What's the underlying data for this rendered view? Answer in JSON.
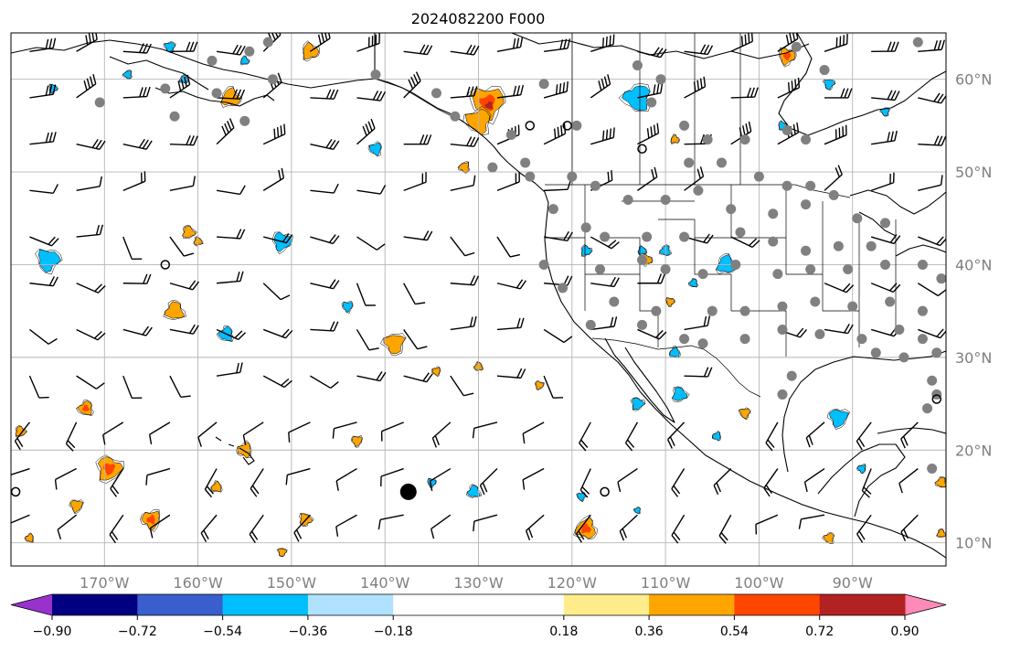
{
  "title": "2024082200 F000",
  "chart_data": {
    "type": "map",
    "projection": "plate-carree",
    "lon_range": [
      -180,
      -80
    ],
    "lat_range": [
      7.5,
      65
    ],
    "lon_ticks": [
      {
        "value": -170,
        "label": "170°W"
      },
      {
        "value": -160,
        "label": "160°W"
      },
      {
        "value": -150,
        "label": "150°W"
      },
      {
        "value": -140,
        "label": "140°W"
      },
      {
        "value": -130,
        "label": "130°W"
      },
      {
        "value": -120,
        "label": "120°W"
      },
      {
        "value": -110,
        "label": "110°W"
      },
      {
        "value": -100,
        "label": "100°W"
      },
      {
        "value": -90,
        "label": "90°W"
      }
    ],
    "lat_ticks": [
      {
        "value": 60,
        "label": "60°N"
      },
      {
        "value": 50,
        "label": "50°N"
      },
      {
        "value": 40,
        "label": "40°N"
      },
      {
        "value": 30,
        "label": "30°N"
      },
      {
        "value": 20,
        "label": "20°N"
      },
      {
        "value": 10,
        "label": "10°N"
      }
    ],
    "grid": true,
    "colorbar": {
      "orientation": "horizontal",
      "extend": "both",
      "levels": [
        -1.08,
        -0.9,
        -0.72,
        -0.54,
        -0.36,
        -0.18,
        0.18,
        0.36,
        0.54,
        0.72,
        0.9,
        1.08
      ],
      "colors": [
        "#9932cc",
        "#000080",
        "#3a5fcd",
        "#00bfff",
        "#b0e2ff",
        "#ffffff",
        "#ffec8b",
        "#ffa500",
        "#ff4500",
        "#b22222",
        "#ff8ab8"
      ],
      "ticks": [
        {
          "value": -0.9,
          "label": "−0.90"
        },
        {
          "value": -0.72,
          "label": "−0.72"
        },
        {
          "value": -0.54,
          "label": "−0.54"
        },
        {
          "value": -0.36,
          "label": "−0.36"
        },
        {
          "value": -0.18,
          "label": "−0.18"
        },
        {
          "value": 0.18,
          "label": "0.18"
        },
        {
          "value": 0.36,
          "label": "0.36"
        },
        {
          "value": 0.54,
          "label": "0.54"
        },
        {
          "value": 0.72,
          "label": "0.72"
        },
        {
          "value": 0.9,
          "label": "0.90"
        }
      ]
    },
    "positive_regions": [
      {
        "lon": -156.5,
        "lat": 58,
        "r": 0.9,
        "level": 0.36
      },
      {
        "lon": -148,
        "lat": 63,
        "r": 0.8,
        "level": 0.36
      },
      {
        "lon": -97,
        "lat": 62.5,
        "r": 0.8,
        "level": 0.54
      },
      {
        "lon": -129,
        "lat": 57.5,
        "r": 1.6,
        "level": 0.54
      },
      {
        "lon": -130,
        "lat": 55.5,
        "r": 1.2,
        "level": 0.36
      },
      {
        "lon": -172,
        "lat": 24.5,
        "r": 0.7,
        "level": 0.54
      },
      {
        "lon": -162.5,
        "lat": 35,
        "r": 0.9,
        "level": 0.36
      },
      {
        "lon": -161,
        "lat": 43.5,
        "r": 0.6,
        "level": 0.36
      },
      {
        "lon": -169.5,
        "lat": 18,
        "r": 1.2,
        "level": 0.54
      },
      {
        "lon": -173,
        "lat": 14,
        "r": 0.6,
        "level": 0.36
      },
      {
        "lon": -165,
        "lat": 12.5,
        "r": 0.9,
        "level": 0.54
      },
      {
        "lon": -155,
        "lat": 20,
        "r": 0.7,
        "level": 0.36
      },
      {
        "lon": -158,
        "lat": 16,
        "r": 0.5,
        "level": 0.36
      },
      {
        "lon": -160,
        "lat": 42.5,
        "r": 0.4,
        "level": 0.36
      },
      {
        "lon": -148.5,
        "lat": 12.5,
        "r": 0.6,
        "level": 0.36
      },
      {
        "lon": -151,
        "lat": 9,
        "r": 0.4,
        "level": 0.36
      },
      {
        "lon": -139,
        "lat": 31.5,
        "r": 1.0,
        "level": 0.36
      },
      {
        "lon": -131.5,
        "lat": 50.5,
        "r": 0.5,
        "level": 0.36
      },
      {
        "lon": -118.5,
        "lat": 11.5,
        "r": 1.0,
        "level": 0.54
      },
      {
        "lon": -109,
        "lat": 53.5,
        "r": 0.4,
        "level": 0.36
      },
      {
        "lon": -112,
        "lat": 40.5,
        "r": 0.5,
        "level": 0.36
      },
      {
        "lon": -109.5,
        "lat": 36,
        "r": 0.4,
        "level": 0.36
      },
      {
        "lon": -101.5,
        "lat": 24,
        "r": 0.5,
        "level": 0.36
      },
      {
        "lon": -92.5,
        "lat": 10.5,
        "r": 0.5,
        "level": 0.36
      },
      {
        "lon": -80.5,
        "lat": 16.5,
        "r": 0.5,
        "level": 0.36
      },
      {
        "lon": -80.5,
        "lat": 11,
        "r": 0.4,
        "level": 0.36
      },
      {
        "lon": -179,
        "lat": 22,
        "r": 0.5,
        "level": 0.36
      },
      {
        "lon": -123.5,
        "lat": 27,
        "r": 0.4,
        "level": 0.36
      },
      {
        "lon": -143,
        "lat": 21,
        "r": 0.5,
        "level": 0.36
      },
      {
        "lon": -134.5,
        "lat": 28.5,
        "r": 0.4,
        "level": 0.36
      },
      {
        "lon": -178,
        "lat": 10.5,
        "r": 0.4,
        "level": 0.36
      },
      {
        "lon": -130,
        "lat": 29,
        "r": 0.4,
        "level": 0.36
      }
    ],
    "negative_regions": [
      {
        "lon": -176,
        "lat": 40.5,
        "r": 1.1,
        "level": -0.36
      },
      {
        "lon": -163,
        "lat": 63.5,
        "r": 0.5,
        "level": -0.36
      },
      {
        "lon": -113,
        "lat": 58,
        "r": 1.3,
        "level": -0.36
      },
      {
        "lon": -110,
        "lat": 41.5,
        "r": 0.5,
        "level": -0.36
      },
      {
        "lon": -103.5,
        "lat": 40,
        "r": 0.9,
        "level": -0.36
      },
      {
        "lon": -118.5,
        "lat": 41.5,
        "r": 0.5,
        "level": -0.36
      },
      {
        "lon": -151,
        "lat": 42.5,
        "r": 0.9,
        "level": -0.36
      },
      {
        "lon": -144,
        "lat": 35.5,
        "r": 0.5,
        "level": -0.36
      },
      {
        "lon": -141,
        "lat": 52.5,
        "r": 0.6,
        "level": -0.36
      },
      {
        "lon": -157,
        "lat": 32.5,
        "r": 0.7,
        "level": -0.36
      },
      {
        "lon": -130.5,
        "lat": 15.5,
        "r": 0.6,
        "level": -0.36
      },
      {
        "lon": -108.5,
        "lat": 26,
        "r": 0.7,
        "level": -0.36
      },
      {
        "lon": -113,
        "lat": 25,
        "r": 0.6,
        "level": -0.36
      },
      {
        "lon": -91.5,
        "lat": 23.5,
        "r": 0.9,
        "level": -0.36
      },
      {
        "lon": -89,
        "lat": 18,
        "r": 0.4,
        "level": -0.36
      },
      {
        "lon": -104.5,
        "lat": 21.5,
        "r": 0.4,
        "level": -0.36
      },
      {
        "lon": -109,
        "lat": 30.5,
        "r": 0.5,
        "level": -0.36
      },
      {
        "lon": -112.5,
        "lat": 41.5,
        "r": 0.4,
        "level": -0.36
      },
      {
        "lon": -175.5,
        "lat": 59,
        "r": 0.4,
        "level": -0.36
      },
      {
        "lon": -92.5,
        "lat": 59.5,
        "r": 0.5,
        "level": -0.36
      },
      {
        "lon": -86.5,
        "lat": 56.5,
        "r": 0.4,
        "level": -0.36
      },
      {
        "lon": -167.5,
        "lat": 60.5,
        "r": 0.4,
        "level": -0.36
      },
      {
        "lon": -161.5,
        "lat": 60,
        "r": 0.4,
        "level": -0.36
      },
      {
        "lon": -155,
        "lat": 62,
        "r": 0.4,
        "level": -0.36
      },
      {
        "lon": -97.5,
        "lat": 55,
        "r": 0.4,
        "level": -0.36
      },
      {
        "lon": -135,
        "lat": 16.5,
        "r": 0.4,
        "level": -0.36
      },
      {
        "lon": -119,
        "lat": 15,
        "r": 0.4,
        "level": -0.36
      },
      {
        "lon": -113,
        "lat": 13.5,
        "r": 0.3,
        "level": -0.36
      },
      {
        "lon": -107,
        "lat": 38,
        "r": 0.4,
        "level": -0.36
      }
    ],
    "stations": [
      {
        "lon": -154.5,
        "lat": 63.0
      },
      {
        "lon": -152.5,
        "lat": 64.0
      },
      {
        "lon": -158.5,
        "lat": 62.0
      },
      {
        "lon": -170.5,
        "lat": 57.5
      },
      {
        "lon": -163.5,
        "lat": 59.0
      },
      {
        "lon": -158.0,
        "lat": 58.5
      },
      {
        "lon": -152.0,
        "lat": 60.0
      },
      {
        "lon": -162.5,
        "lat": 56.0
      },
      {
        "lon": -155.0,
        "lat": 55.5
      },
      {
        "lon": -123.0,
        "lat": 59.5
      },
      {
        "lon": -113.0,
        "lat": 61.5
      },
      {
        "lon": -110.5,
        "lat": 60.0
      },
      {
        "lon": -96.0,
        "lat": 63.5
      },
      {
        "lon": -93.0,
        "lat": 61.0
      },
      {
        "lon": -83.0,
        "lat": 64.0
      },
      {
        "lon": -119.5,
        "lat": 55.0
      },
      {
        "lon": -111.5,
        "lat": 57.5
      },
      {
        "lon": -108.0,
        "lat": 55.0
      },
      {
        "lon": -105.5,
        "lat": 53.5
      },
      {
        "lon": -101.5,
        "lat": 53.5
      },
      {
        "lon": -97.0,
        "lat": 54.5
      },
      {
        "lon": -95.0,
        "lat": 53.5
      },
      {
        "lon": -107.5,
        "lat": 51.0
      },
      {
        "lon": -104.0,
        "lat": 51.0
      },
      {
        "lon": -100.0,
        "lat": 49.5
      },
      {
        "lon": -97.0,
        "lat": 48.5
      },
      {
        "lon": -94.5,
        "lat": 48.5
      },
      {
        "lon": -92.0,
        "lat": 47.5
      },
      {
        "lon": -120.0,
        "lat": 49.5
      },
      {
        "lon": -117.5,
        "lat": 48.5
      },
      {
        "lon": -114.0,
        "lat": 47.0
      },
      {
        "lon": -110.0,
        "lat": 47.0
      },
      {
        "lon": -106.5,
        "lat": 48.0
      },
      {
        "lon": -103.0,
        "lat": 46.0
      },
      {
        "lon": -98.5,
        "lat": 45.5
      },
      {
        "lon": -95.0,
        "lat": 46.5
      },
      {
        "lon": -89.5,
        "lat": 45.0
      },
      {
        "lon": -86.5,
        "lat": 44.5
      },
      {
        "lon": -122.0,
        "lat": 46.0
      },
      {
        "lon": -118.5,
        "lat": 44.0
      },
      {
        "lon": -116.5,
        "lat": 43.0
      },
      {
        "lon": -112.0,
        "lat": 43.0
      },
      {
        "lon": -108.0,
        "lat": 43.0
      },
      {
        "lon": -102.0,
        "lat": 43.5
      },
      {
        "lon": -98.5,
        "lat": 42.5
      },
      {
        "lon": -95.0,
        "lat": 41.5
      },
      {
        "lon": -91.5,
        "lat": 42.0
      },
      {
        "lon": -88.0,
        "lat": 42.0
      },
      {
        "lon": -123.0,
        "lat": 40.0
      },
      {
        "lon": -117.0,
        "lat": 39.5
      },
      {
        "lon": -112.5,
        "lat": 40.5
      },
      {
        "lon": -110.0,
        "lat": 39.5
      },
      {
        "lon": -106.0,
        "lat": 39.0
      },
      {
        "lon": -102.5,
        "lat": 40.0
      },
      {
        "lon": -98.0,
        "lat": 39.0
      },
      {
        "lon": -94.5,
        "lat": 39.5
      },
      {
        "lon": -90.5,
        "lat": 39.5
      },
      {
        "lon": -86.5,
        "lat": 40.0
      },
      {
        "lon": -82.5,
        "lat": 40.0
      },
      {
        "lon": -80.5,
        "lat": 38.5
      },
      {
        "lon": -121.0,
        "lat": 37.5
      },
      {
        "lon": -115.5,
        "lat": 36.0
      },
      {
        "lon": -111.0,
        "lat": 35.0
      },
      {
        "lon": -105.0,
        "lat": 35.0
      },
      {
        "lon": -101.5,
        "lat": 35.0
      },
      {
        "lon": -97.5,
        "lat": 35.5
      },
      {
        "lon": -94.0,
        "lat": 36.0
      },
      {
        "lon": -90.0,
        "lat": 35.5
      },
      {
        "lon": -86.0,
        "lat": 36.0
      },
      {
        "lon": -82.5,
        "lat": 35.0
      },
      {
        "lon": -118.0,
        "lat": 33.5
      },
      {
        "lon": -112.5,
        "lat": 33.5
      },
      {
        "lon": -108.0,
        "lat": 32.0
      },
      {
        "lon": -106.0,
        "lat": 31.5
      },
      {
        "lon": -101.5,
        "lat": 32.0
      },
      {
        "lon": -97.5,
        "lat": 33.0
      },
      {
        "lon": -93.5,
        "lat": 32.5
      },
      {
        "lon": -89.0,
        "lat": 32.0
      },
      {
        "lon": -85.0,
        "lat": 33.0
      },
      {
        "lon": -82.5,
        "lat": 32.0
      },
      {
        "lon": -81.0,
        "lat": 30.5
      },
      {
        "lon": -84.5,
        "lat": 30.0
      },
      {
        "lon": -87.5,
        "lat": 30.5
      },
      {
        "lon": -96.5,
        "lat": 28.0
      },
      {
        "lon": -97.5,
        "lat": 26.0
      },
      {
        "lon": -81.5,
        "lat": 27.5
      },
      {
        "lon": -82.0,
        "lat": 24.5
      },
      {
        "lon": -81.0,
        "lat": 26.0
      },
      {
        "lon": -132.5,
        "lat": 56.0
      },
      {
        "lon": -134.5,
        "lat": 58.5
      },
      {
        "lon": -126.5,
        "lat": 54.0
      },
      {
        "lon": -124.5,
        "lat": 49.5
      },
      {
        "lon": -141.0,
        "lat": 60.5
      },
      {
        "lon": -125.0,
        "lat": 51.0
      },
      {
        "lon": -128.5,
        "lat": 50.5
      },
      {
        "lon": -81.5,
        "lat": 18.0
      }
    ],
    "open_circles": [
      {
        "lon": -124.5,
        "lat": 55.0
      },
      {
        "lon": -120.5,
        "lat": 55.0
      },
      {
        "lon": -112.5,
        "lat": 52.5
      },
      {
        "lon": -163.5,
        "lat": 40.0
      },
      {
        "lon": -179.5,
        "lat": 15.5
      },
      {
        "lon": -116.5,
        "lat": 15.5
      },
      {
        "lon": -81.0,
        "lat": 25.5
      }
    ],
    "big_marker": {
      "lon": -137.5,
      "lat": 15.5
    },
    "wind_barbs": []
  }
}
